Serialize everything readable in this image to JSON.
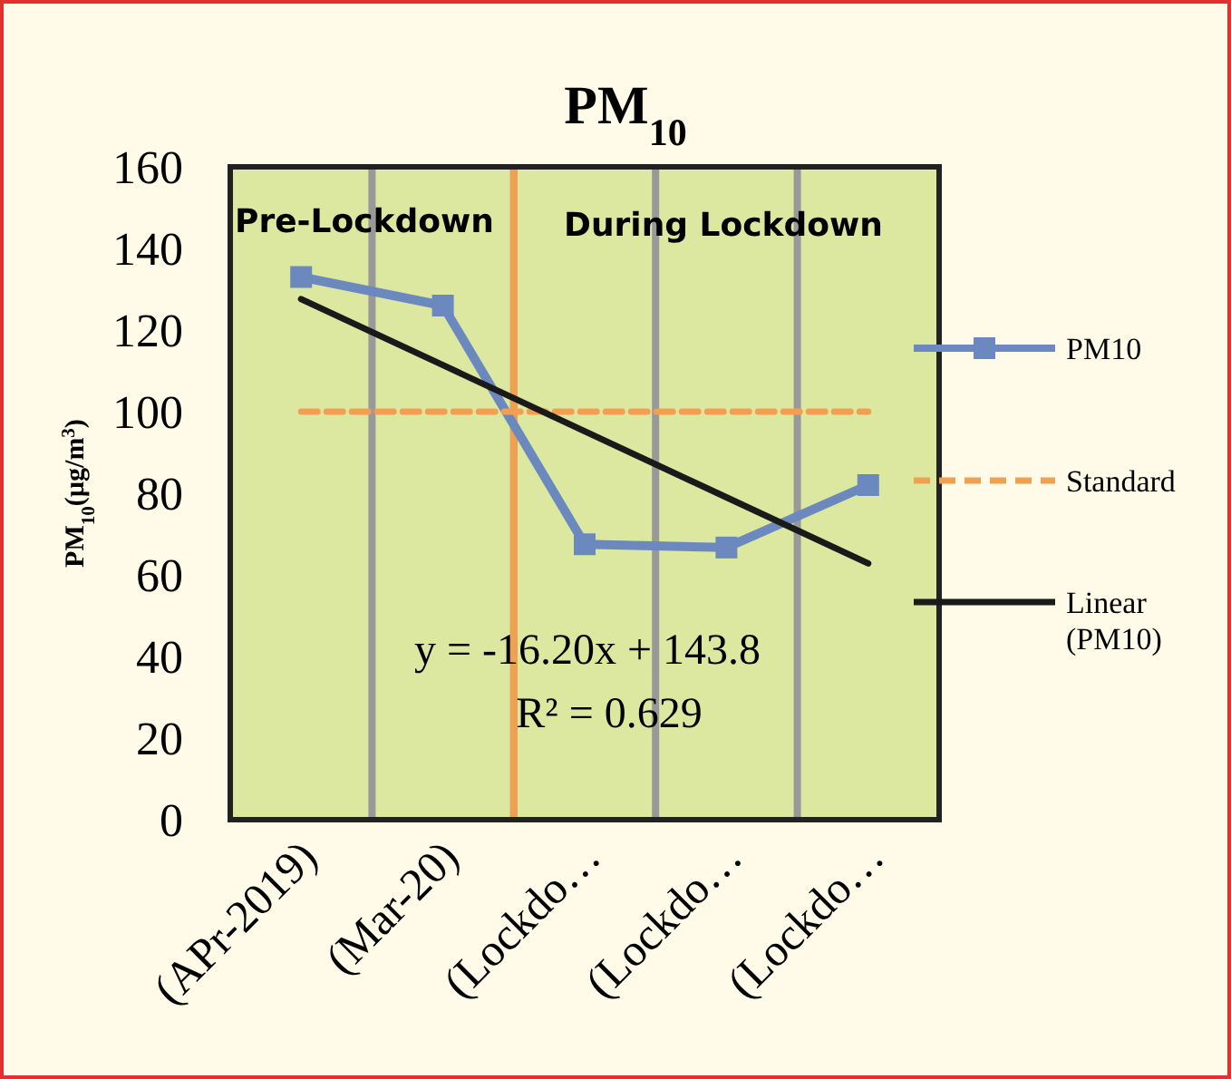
{
  "chart_data": {
    "type": "line",
    "title": "PM$_{10}$",
    "ylabel": "PM$_{10}$(µg/m$^{3}$)",
    "categories": [
      "(APr-2019)",
      "(Mar-20)",
      "(Lockdo…",
      "(Lockdo…",
      "(Lockdo…"
    ],
    "series": [
      {
        "name": "PM10",
        "color": "#6b88bf",
        "values": [
          133,
          126,
          67.5,
          66.7,
          82
        ],
        "marker": "square",
        "line_style": "solid"
      },
      {
        "name": "Standard",
        "color": "#f0a050",
        "values": [
          100,
          100,
          100,
          100,
          100
        ],
        "marker": "none",
        "line_style": "dashed"
      },
      {
        "name": "Linear (PM10)",
        "color": "#1a1a1a",
        "values": [
          127.6,
          111.4,
          95.2,
          79,
          62.8
        ],
        "marker": "none",
        "line_style": "solid"
      }
    ],
    "ylim": [
      0,
      160
    ],
    "yticks": [
      0,
      20,
      40,
      60,
      80,
      100,
      120,
      140,
      160
    ],
    "grid": "x",
    "legend": "right",
    "ref_lines": [
      {
        "axis": "x",
        "value": "(Mar-20)",
        "color": "#f0a050"
      }
    ],
    "annotations": [
      "Pre-Lockdown",
      "During Lockdown",
      "y = -16.20x + 143.8",
      "R² = 0.629"
    ]
  }
}
